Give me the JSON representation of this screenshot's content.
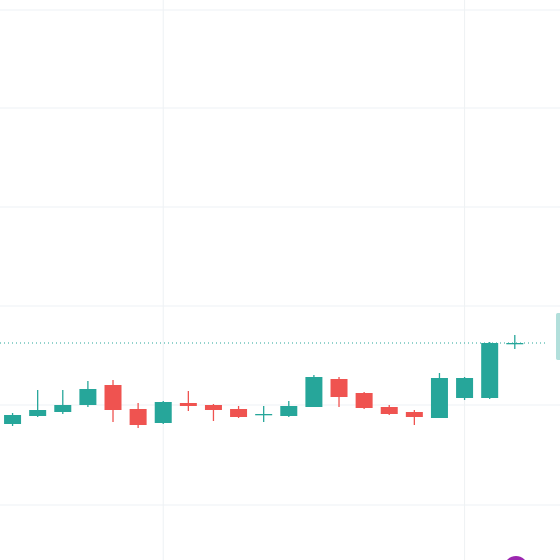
{
  "chart_data": {
    "type": "candlestick",
    "open": [
      136,
      144,
      148,
      155,
      175,
      151,
      137,
      157,
      155,
      151,
      145,
      144,
      153,
      181,
      167,
      153,
      148,
      142,
      162,
      162,
      217
    ],
    "high": [
      147,
      170,
      170,
      179,
      180,
      157,
      159,
      169,
      156,
      154,
      154,
      159,
      185,
      183,
      168,
      155,
      150,
      187,
      183,
      218,
      225
    ],
    "low": [
      134,
      143,
      146,
      153,
      138,
      132,
      136,
      149,
      139,
      142,
      138,
      143,
      153,
      153,
      151,
      145,
      135,
      142,
      160,
      161,
      211
    ],
    "close": [
      145,
      150,
      155,
      171,
      150,
      135,
      158,
      154,
      150,
      143,
      146,
      154,
      183,
      163,
      152,
      146,
      143,
      182,
      182,
      217,
      217
    ],
    "up_color": "#26a69a",
    "down_color": "#ef5350",
    "last_price": 217,
    "ylim": [
      0,
      560
    ],
    "yticks": [
      550,
      452,
      353,
      254,
      155,
      55
    ],
    "xlim": [
      -0.5,
      21.8
    ],
    "xticks": [
      6,
      18
    ],
    "grid": true
  }
}
